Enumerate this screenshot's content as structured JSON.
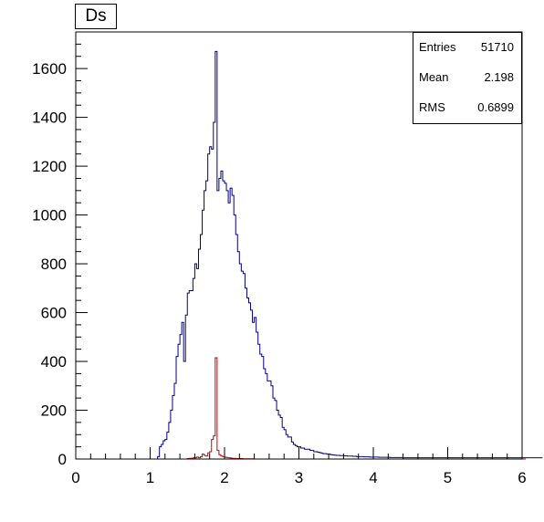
{
  "title": "Ds",
  "stats": [
    {
      "label": "Entries",
      "value": "51710"
    },
    {
      "label": "Mean",
      "value": "2.198"
    },
    {
      "label": "RMS",
      "value": "0.6899"
    }
  ],
  "chart_data": {
    "type": "histogram",
    "title": "Ds",
    "xlabel": "",
    "ylabel": "",
    "xlim": [
      0,
      6
    ],
    "ylim": [
      0,
      1750
    ],
    "x_ticks": [
      "0",
      "1",
      "2",
      "3",
      "4",
      "5",
      "6"
    ],
    "y_ticks": [
      "0",
      "200",
      "400",
      "600",
      "800",
      "1000",
      "1200",
      "1400",
      "1600"
    ],
    "grid": false,
    "bin_width": 0.025,
    "series": [
      {
        "color": "#000080",
        "x_start": 1.1,
        "values": [
          10,
          50,
          60,
          75,
          80,
          110,
          150,
          200,
          260,
          310,
          420,
          470,
          510,
          560,
          400,
          590,
          680,
          690,
          690,
          740,
          800,
          780,
          860,
          920,
          1020,
          1100,
          1140,
          1250,
          1280,
          1270,
          1380,
          1670,
          1100,
          1150,
          1180,
          1140,
          1130,
          1100,
          1050,
          1110,
          1080,
          1000,
          920,
          850,
          800,
          770,
          760,
          700,
          660,
          640,
          610,
          560,
          580,
          520,
          470,
          430,
          420,
          370,
          350,
          320,
          320,
          300,
          250,
          240,
          200,
          180,
          170,
          130,
          120,
          100,
          90,
          90,
          70,
          60,
          55,
          50,
          50,
          45,
          45,
          40,
          40,
          40,
          35,
          35,
          30,
          30,
          28,
          26,
          24,
          22,
          22,
          20,
          20,
          18,
          17,
          16,
          15,
          15,
          14,
          14,
          13,
          13,
          12,
          12,
          12,
          11,
          11,
          10,
          10,
          10,
          10,
          9,
          9,
          9,
          8,
          8,
          8,
          8,
          8,
          7,
          7,
          7,
          7,
          7,
          7,
          6,
          6,
          6,
          6,
          6,
          6,
          6,
          5,
          5,
          5,
          5,
          5,
          5,
          5,
          5,
          5,
          5,
          5,
          5,
          5,
          5,
          5,
          5,
          5,
          5,
          5,
          5,
          5,
          5,
          5,
          5,
          5,
          5,
          5,
          5,
          5,
          5,
          5,
          5,
          5,
          5,
          5,
          5,
          5,
          5,
          5,
          5,
          5,
          5,
          5,
          5,
          5,
          5,
          5,
          5,
          5,
          5,
          5,
          5,
          5,
          5,
          5,
          5,
          5,
          5,
          5,
          5,
          5,
          5,
          5,
          5,
          5,
          5,
          5,
          5,
          5,
          5,
          5,
          5,
          5,
          5,
          5
        ]
      },
      {
        "color": "#cc0000",
        "x_start": 1.1,
        "values": [
          0,
          0,
          0,
          0,
          0,
          0,
          0,
          0,
          0,
          0,
          0,
          0,
          0,
          0,
          0,
          0,
          2,
          3,
          3,
          5,
          5,
          8,
          5,
          10,
          20,
          15,
          12,
          25,
          30,
          80,
          95,
          415,
          35,
          18,
          12,
          10,
          8,
          6,
          5,
          4,
          3,
          3,
          2,
          2,
          2,
          2,
          1,
          1,
          1,
          1,
          1,
          1,
          0,
          0,
          0,
          0,
          0,
          0,
          0,
          0,
          0,
          0,
          0,
          0,
          0,
          0,
          0,
          0,
          0,
          0,
          0,
          0,
          0,
          0,
          0,
          0,
          0,
          0,
          0,
          0,
          0,
          0,
          0,
          0,
          0,
          0,
          0,
          0,
          0,
          0,
          0,
          0,
          0,
          0,
          0,
          0,
          0,
          0,
          0,
          0,
          0,
          0,
          0,
          0,
          0,
          0,
          0,
          0,
          0,
          0,
          0,
          0,
          0,
          0,
          0,
          0,
          0,
          0,
          0,
          0,
          0,
          0,
          0,
          0,
          0,
          0,
          0,
          0,
          0,
          0,
          0,
          0,
          0,
          0,
          0,
          0,
          0,
          0,
          0,
          0,
          0,
          0,
          0,
          0,
          0,
          0,
          0,
          0,
          0,
          0,
          0,
          0,
          0,
          0,
          0,
          0,
          0,
          0,
          0,
          0,
          0,
          0,
          0,
          0,
          0,
          0,
          0,
          0,
          0,
          0,
          0,
          0,
          0,
          0,
          0,
          0,
          0,
          0,
          0,
          0,
          0,
          0,
          0,
          0,
          0,
          0,
          0,
          0,
          0,
          0,
          0,
          0,
          0,
          0,
          0,
          0,
          0,
          0
        ]
      }
    ]
  }
}
